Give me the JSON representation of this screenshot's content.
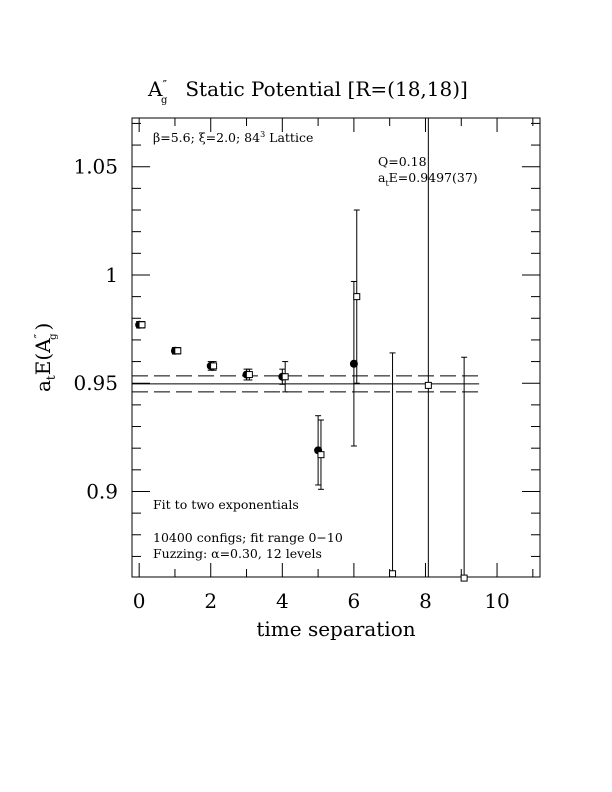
{
  "chart_data": {
    "type": "scatter",
    "title_symbol": "A",
    "title_symbol_sub": "g",
    "title_symbol_sup": "″",
    "title_rest": "Static Potential [R=(18,18)]",
    "xlabel": "time separation",
    "ylabel_main": "a",
    "ylabel_sub": "t",
    "ylabel_open": "E(A",
    "ylabel_sup": "″",
    "ylabel_sub2": "g",
    "ylabel_close": ")",
    "xlim": [
      -0.2,
      11.2
    ],
    "ylim": [
      0.8605,
      1.0725
    ],
    "x_ticks": [
      0,
      2,
      4,
      6,
      8,
      10
    ],
    "x_tick_labels": [
      "0",
      "2",
      "4",
      "6",
      "8",
      "10"
    ],
    "y_ticks": [
      0.9,
      0.95,
      1.0,
      1.05
    ],
    "y_tick_labels": [
      "0.9",
      "0.95",
      "1",
      "1.05"
    ],
    "header_note": {
      "prefix": "β=5.6; ξ=2.0; 84",
      "sup": "3",
      "suffix": " Lattice"
    },
    "fit_info": {
      "q_text": "Q=0.18",
      "energy_prefix": "a",
      "energy_sub": "t",
      "energy_suffix": "E=0.9497(37)"
    },
    "notes": [
      "Fit to two exponentials",
      "10400 configs; fit range 0−10",
      "Fuzzing: α=0.30, 12 levels"
    ],
    "fit": {
      "value": 0.9497,
      "error": 0.0037,
      "x_range": [
        -0.2,
        9.5
      ]
    },
    "series": [
      {
        "marker": "filled-circle",
        "points": [
          {
            "x": 0,
            "y": 0.977,
            "err": 0.0015
          },
          {
            "x": 1,
            "y": 0.965,
            "err": 0.0015
          },
          {
            "x": 2,
            "y": 0.958,
            "err": 0.002
          },
          {
            "x": 3,
            "y": 0.954,
            "err": 0.0025
          },
          {
            "x": 4,
            "y": 0.953,
            "err": 0.0035
          },
          {
            "x": 5,
            "y": 0.919,
            "err": 0.016
          },
          {
            "x": 6,
            "y": 0.959,
            "err": 0.038
          }
        ]
      },
      {
        "marker": "open-square",
        "points": [
          {
            "x": 0,
            "y": 0.977,
            "err": 0.0015
          },
          {
            "x": 1,
            "y": 0.965,
            "err": 0.0015
          },
          {
            "x": 2,
            "y": 0.958,
            "err": 0.002
          },
          {
            "x": 3,
            "y": 0.954,
            "err": 0.0025
          },
          {
            "x": 4,
            "y": 0.953,
            "err": 0.007
          },
          {
            "x": 5,
            "y": 0.917,
            "err": 0.016
          },
          {
            "x": 6,
            "y": 0.99,
            "err": 0.04
          },
          {
            "x": 7,
            "y": 0.862,
            "err": 0.102
          },
          {
            "x": 8,
            "y": 0.949,
            "err": 0.25
          },
          {
            "x": 9,
            "y": 0.86,
            "err": 0.102
          }
        ]
      }
    ]
  }
}
